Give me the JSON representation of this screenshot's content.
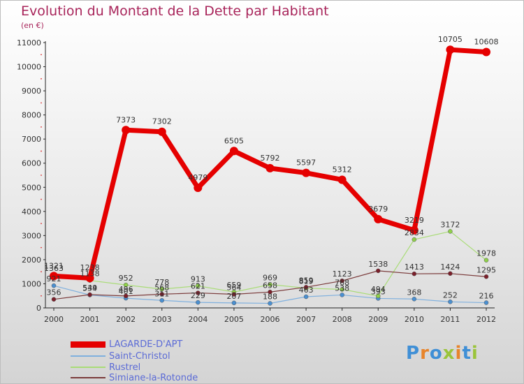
{
  "header": {
    "title": "Evolution du Montant de la Dette par Habitant",
    "subtitle": "(en €)"
  },
  "logo": {
    "text": "Proxiti",
    "letter_colors": [
      "#3f8fd6",
      "#e8842a",
      "#3f8fd6",
      "#9ac43b",
      "#e8842a",
      "#3f8fd6",
      "#9ac43b"
    ]
  },
  "chart_data": {
    "type": "line",
    "x": [
      "2000",
      "2001",
      "2002",
      "2003",
      "2004",
      "2005",
      "2006",
      "2007",
      "2008",
      "2009",
      "2010",
      "2011",
      "2012"
    ],
    "yticks": [
      "0",
      "1000",
      "2000",
      "3000",
      "4000",
      "5000",
      "6000",
      "7000",
      "8000",
      "9000",
      "10000",
      "11000"
    ],
    "ylim": [
      0,
      11000
    ],
    "grid": false,
    "legend_position": "bottom-left",
    "series": [
      {
        "name": "Saint-Christol",
        "color": "#4a8fd0",
        "line_color": "#7fb0de",
        "width": 1.2,
        "marker": 3,
        "values": [
          921,
          534,
          401,
          311,
          229,
          207,
          188,
          463,
          538,
          393,
          368,
          252,
          216
        ],
        "labels": [
          "921",
          "534",
          "401",
          "311",
          "229",
          "207",
          "188",
          "463",
          "538",
          "393",
          "368",
          "252",
          "216"
        ]
      },
      {
        "name": "Rustrel",
        "color": "#8fd04a",
        "line_color": "#a9dc77",
        "width": 1.2,
        "marker": 3,
        "values": [
          1363,
          1138,
          952,
          778,
          913,
          659,
          969,
          819,
          768,
          494,
          2834,
          3172,
          1978
        ],
        "labels": [
          "1363",
          "1138",
          "952",
          "778",
          "913",
          "659",
          "969",
          "819",
          "768",
          "494",
          "2834",
          "3172",
          "1978"
        ]
      },
      {
        "name": "Simiane-la-Rotonde",
        "color": "#7b1f2a",
        "line_color": "#7b3b3b",
        "width": 1.2,
        "marker": 3,
        "values": [
          356,
          549,
          496,
          568,
          621,
          564,
          658,
          859,
          1123,
          1538,
          1413,
          1424,
          1295
        ],
        "labels": [
          "356",
          "549",
          "496",
          "568",
          "621",
          "564",
          "658",
          "859",
          "1123",
          "1538",
          "1413",
          "1424",
          "1295"
        ]
      },
      {
        "name": "LAGARDE-D'APT",
        "color": "#e50000",
        "line_color": "#e50000",
        "width": 7,
        "marker": 6,
        "values": [
          1321,
          1238,
          7373,
          7302,
          4979,
          6505,
          5792,
          5597,
          5312,
          3679,
          3219,
          10705,
          10608
        ],
        "labels": [
          "1321",
          "1238",
          "7373",
          "7302",
          "4979",
          "6505",
          "5792",
          "5597",
          "5312",
          "3679",
          "3219",
          "10705",
          "10608"
        ]
      }
    ],
    "legend_order": [
      3,
      0,
      1,
      2
    ]
  }
}
